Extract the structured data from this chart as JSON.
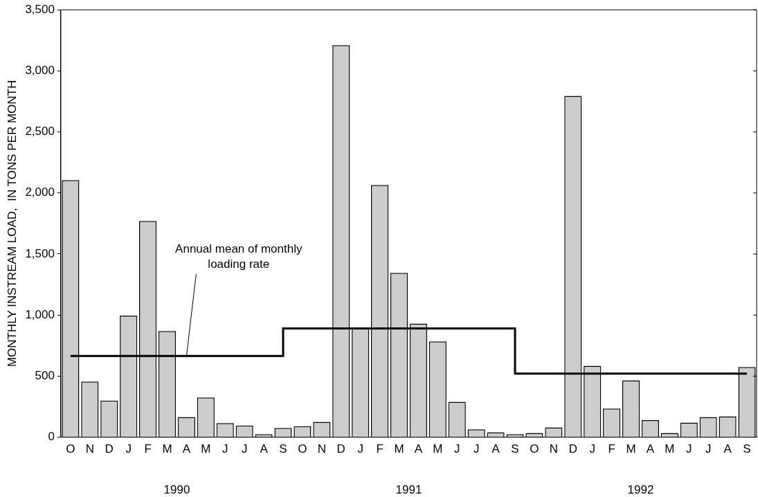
{
  "chart_data": {
    "type": "bar",
    "ylabel": "MONTHLY INSTREAM LOAD,  IN TONS PER MONTH",
    "categories": [
      "O",
      "N",
      "D",
      "J",
      "F",
      "M",
      "A",
      "M",
      "J",
      "J",
      "A",
      "S",
      "O",
      "N",
      "D",
      "J",
      "F",
      "M",
      "A",
      "M",
      "J",
      "J",
      "A",
      "S",
      "O",
      "N",
      "D",
      "J",
      "F",
      "M",
      "A",
      "M",
      "J",
      "J",
      "A",
      "S"
    ],
    "series": [
      {
        "color": "#cccccc",
        "values": [
          2105,
          455,
          300,
          995,
          1770,
          870,
          165,
          325,
          115,
          95,
          25,
          75,
          90,
          125,
          3210,
          890,
          2065,
          1345,
          930,
          785,
          290,
          65,
          40,
          25,
          35,
          80,
          2795,
          585,
          235,
          465,
          140,
          35,
          120,
          165,
          170,
          575
        ]
      },
      {
        "type": "step",
        "color": "#000000",
        "values": [
          665,
          665,
          665,
          665,
          665,
          665,
          665,
          665,
          665,
          665,
          665,
          665,
          890,
          890,
          890,
          890,
          890,
          890,
          890,
          890,
          890,
          890,
          890,
          890,
          520,
          520,
          520,
          520,
          520,
          520,
          520,
          520,
          520,
          520,
          520,
          520
        ]
      }
    ],
    "ylim": [
      0,
      3500
    ],
    "yticks": [
      {
        "value": 0,
        "label": "0"
      },
      {
        "value": 500,
        "label": "500"
      },
      {
        "value": 1000,
        "label": "1,000"
      },
      {
        "value": 1500,
        "label": "1,500"
      },
      {
        "value": 2000,
        "label": "2,000"
      },
      {
        "value": 2500,
        "label": "2,500"
      },
      {
        "value": 3000,
        "label": "3,000"
      },
      {
        "value": 3500,
        "label": "3,500"
      }
    ],
    "grid": false,
    "legend": false,
    "annotations": [
      {
        "text": "Annual mean of monthly\nloading rate",
        "x": "A",
        "y": 665
      },
      "1990",
      "1991",
      "1992"
    ]
  }
}
